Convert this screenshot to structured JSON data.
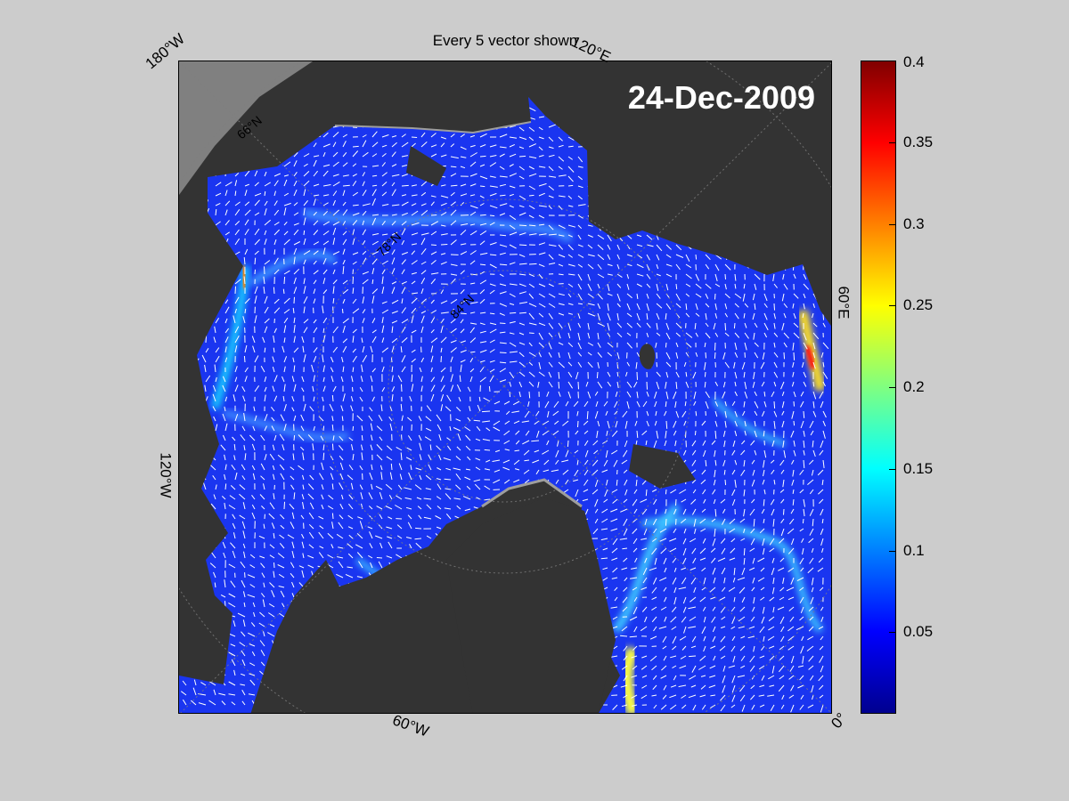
{
  "figure": {
    "title": "Every 5 vector shown",
    "date": "24-Dec-2009"
  },
  "map": {
    "edge_labels": [
      "180°W",
      "120°E",
      "60°E",
      "0°",
      "60°W",
      "120°W"
    ],
    "interior_labels": [
      "66°N",
      "78°N",
      "84°N"
    ],
    "colors": {
      "land": "#333333",
      "outside": "#808080",
      "ice_edge": "#9e9e9e",
      "vector": "#ffffff"
    }
  },
  "colorbar": {
    "colormap": "jet",
    "range": [
      0,
      0.4
    ],
    "ticks": [
      "0.4",
      "0.35",
      "0.3",
      "0.25",
      "0.2",
      "0.15",
      "0.1",
      "0.05"
    ]
  }
}
